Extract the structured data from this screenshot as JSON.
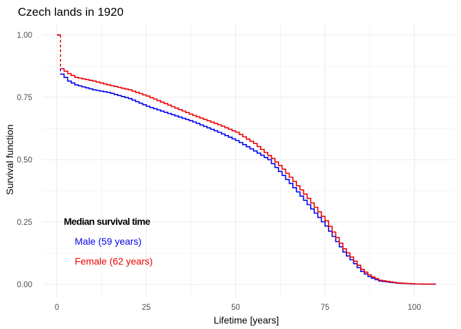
{
  "chart_data": {
    "type": "line",
    "step": true,
    "title": "Czech lands in 1920",
    "xlabel": "Lifetime [years]",
    "ylabel": "Survival function",
    "xlim": [
      -4,
      111
    ],
    "ylim": [
      -0.05,
      1.05
    ],
    "xticks": [
      0,
      25,
      50,
      75,
      100
    ],
    "xtick_labels": [
      "0",
      "25",
      "50",
      "75",
      "100"
    ],
    "x_minor": [
      12.5,
      37.5,
      62.5,
      87.5
    ],
    "yticks": [
      0,
      0.25,
      0.5,
      0.75,
      1.0
    ],
    "ytick_labels": [
      "0.00",
      "0.25",
      "0.50",
      "0.75",
      "1.00"
    ],
    "y_minor": [
      0.125,
      0.375,
      0.625,
      0.875
    ],
    "grid": true,
    "series": [
      {
        "name": "Male",
        "color": "#0000ee",
        "x": [
          0,
          1,
          2,
          3,
          5,
          10,
          14,
          20,
          25,
          30,
          37.5,
          45,
          50,
          55,
          59,
          62.5,
          65,
          70,
          75,
          80,
          85,
          87.5,
          90,
          95,
          100,
          106
        ],
        "y": [
          1.0,
          0.843,
          0.83,
          0.815,
          0.8,
          0.78,
          0.77,
          0.745,
          0.714,
          0.69,
          0.654,
          0.61,
          0.577,
          0.535,
          0.5,
          0.445,
          0.405,
          0.32,
          0.234,
          0.13,
          0.052,
          0.027,
          0.014,
          0.005,
          0.002,
          0.001
        ]
      },
      {
        "name": "Female",
        "color": "#ee0000",
        "x": [
          0,
          1,
          2,
          3,
          5,
          10,
          14,
          20,
          25,
          30,
          37.5,
          45,
          50,
          55,
          60,
          62.5,
          65,
          70,
          75,
          80,
          85,
          87.5,
          90,
          95,
          100,
          106
        ],
        "y": [
          1.0,
          0.865,
          0.855,
          0.845,
          0.83,
          0.815,
          0.8,
          0.78,
          0.755,
          0.725,
          0.68,
          0.64,
          0.61,
          0.565,
          0.505,
          0.47,
          0.43,
          0.345,
          0.255,
          0.143,
          0.06,
          0.033,
          0.017,
          0.006,
          0.002,
          0.001
        ]
      }
    ],
    "annotations": {
      "heading": "Median survival time",
      "male": "Male (59 years)",
      "female": "Female (62 years)"
    }
  }
}
